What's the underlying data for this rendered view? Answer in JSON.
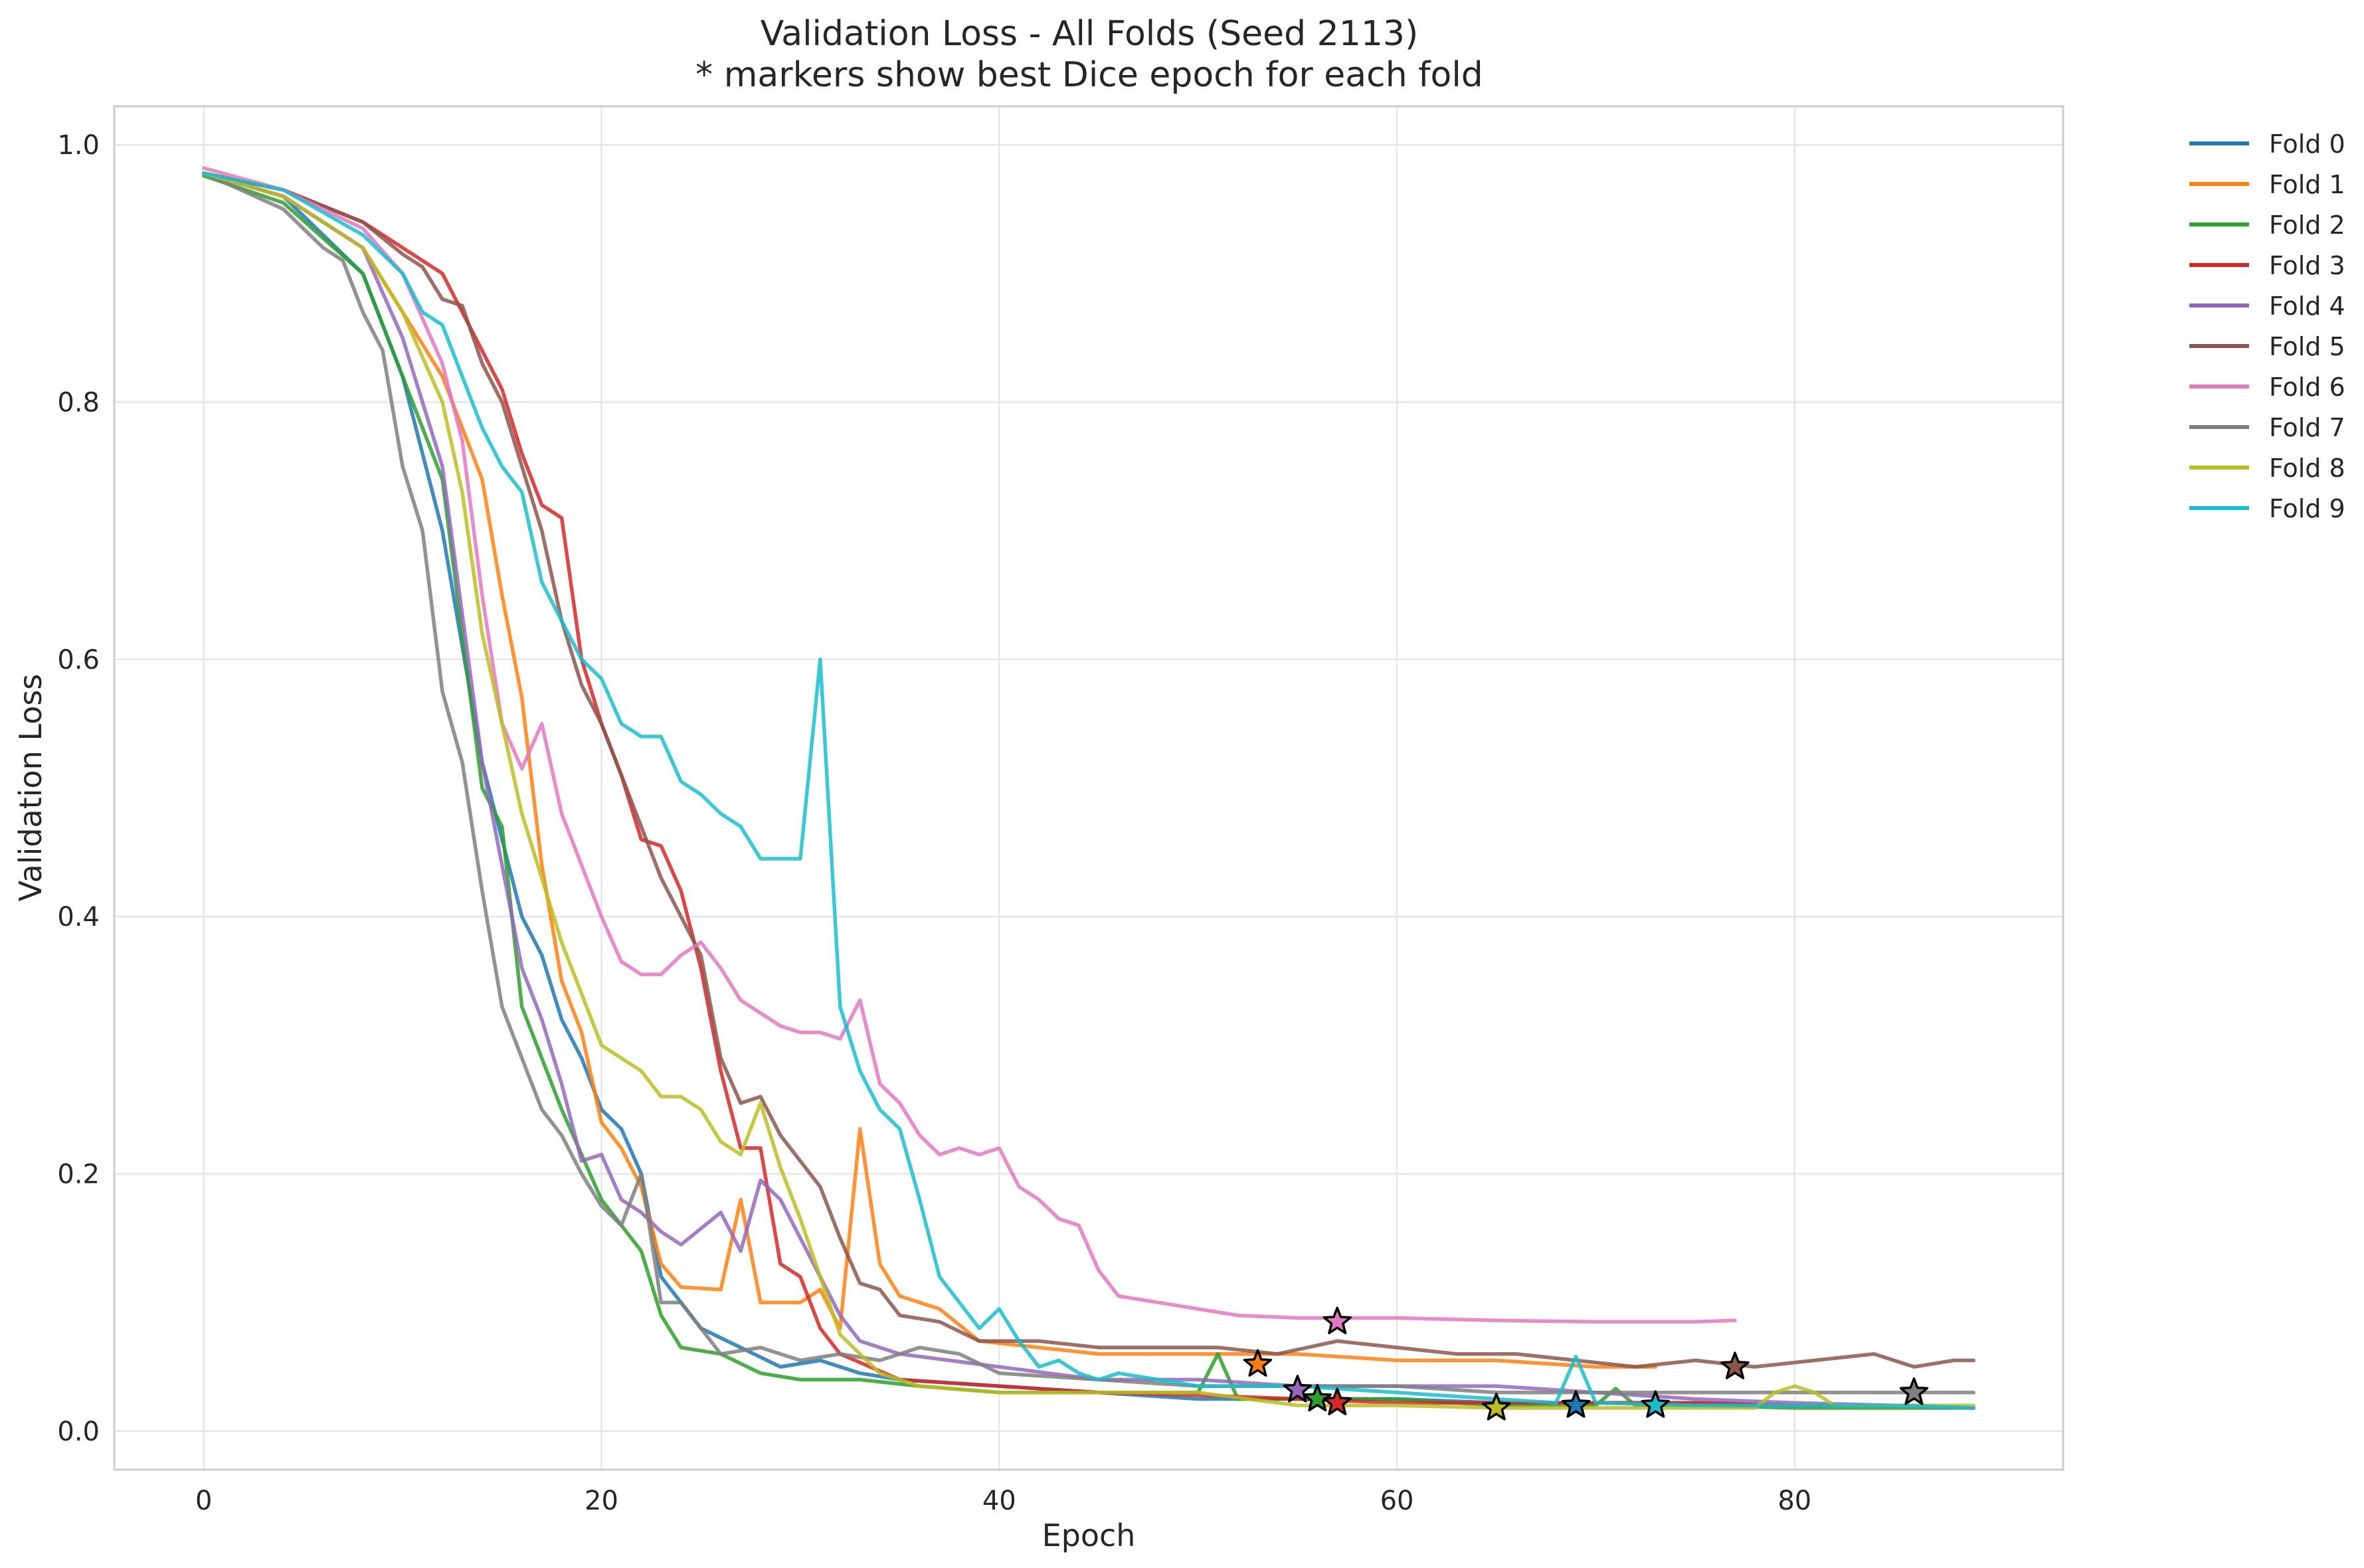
{
  "chart_data": {
    "type": "line",
    "title": "Validation Loss - All Folds (Seed 2113)",
    "subtitle": "* markers show best Dice epoch for each fold",
    "xlabel": "Epoch",
    "ylabel": "Validation Loss",
    "xlim": [
      -4.5,
      93.5
    ],
    "ylim": [
      -0.03,
      1.03
    ],
    "xticks": [
      0,
      20,
      40,
      60,
      80
    ],
    "yticks": [
      0.0,
      0.2,
      0.4,
      0.6,
      0.8,
      1.0
    ],
    "xtick_labels": [
      "0",
      "20",
      "40",
      "60",
      "80"
    ],
    "ytick_labels": [
      "0.0",
      "0.2",
      "0.4",
      "0.6",
      "0.8",
      "1.0"
    ],
    "grid": true,
    "legend_placement": "outside-top-right",
    "series": [
      {
        "name": "Fold 0",
        "color": "#1f77b4",
        "x": [
          0,
          4,
          8,
          10,
          12,
          14,
          16,
          17,
          18,
          19,
          20,
          21,
          22,
          23,
          25,
          27,
          29,
          31,
          33,
          35,
          40,
          45,
          50,
          55,
          60,
          65,
          70,
          75,
          80,
          85,
          89
        ],
        "y": [
          0.978,
          0.96,
          0.9,
          0.82,
          0.7,
          0.52,
          0.4,
          0.37,
          0.32,
          0.29,
          0.25,
          0.235,
          0.2,
          0.12,
          0.08,
          0.065,
          0.05,
          0.055,
          0.045,
          0.04,
          0.035,
          0.03,
          0.025,
          0.025,
          0.025,
          0.022,
          0.022,
          0.022,
          0.02,
          0.02,
          0.018
        ],
        "best": {
          "epoch": 69,
          "loss": 0.02
        }
      },
      {
        "name": "Fold 1",
        "color": "#ff7f0e",
        "x": [
          0,
          4,
          8,
          10,
          12,
          14,
          15,
          16,
          17,
          18,
          19,
          20,
          21,
          22,
          23,
          24,
          26,
          27,
          28,
          29,
          30,
          31,
          32,
          33,
          34,
          35,
          37,
          39,
          42,
          45,
          50,
          55,
          60,
          65,
          70,
          73
        ],
        "y": [
          0.978,
          0.96,
          0.92,
          0.87,
          0.82,
          0.74,
          0.65,
          0.57,
          0.44,
          0.35,
          0.31,
          0.24,
          0.22,
          0.19,
          0.13,
          0.112,
          0.11,
          0.18,
          0.1,
          0.1,
          0.1,
          0.11,
          0.08,
          0.235,
          0.13,
          0.105,
          0.095,
          0.07,
          0.065,
          0.06,
          0.06,
          0.06,
          0.055,
          0.055,
          0.05,
          0.05
        ],
        "best": {
          "epoch": 53,
          "loss": 0.052
        }
      },
      {
        "name": "Fold 2",
        "color": "#2ca02c",
        "x": [
          0,
          4,
          8,
          10,
          12,
          13,
          14,
          15,
          16,
          18,
          20,
          21,
          22,
          23,
          24,
          26,
          28,
          30,
          33,
          36,
          40,
          45,
          50,
          51,
          52,
          55,
          60,
          65,
          70,
          71,
          72,
          75,
          80,
          85,
          89
        ],
        "y": [
          0.976,
          0.955,
          0.9,
          0.82,
          0.74,
          0.62,
          0.5,
          0.47,
          0.33,
          0.25,
          0.18,
          0.16,
          0.14,
          0.09,
          0.065,
          0.06,
          0.045,
          0.04,
          0.04,
          0.035,
          0.03,
          0.03,
          0.03,
          0.06,
          0.025,
          0.025,
          0.025,
          0.02,
          0.02,
          0.033,
          0.02,
          0.02,
          0.018,
          0.018,
          0.018
        ],
        "best": {
          "epoch": 56,
          "loss": 0.025
        }
      },
      {
        "name": "Fold 3",
        "color": "#d62728",
        "x": [
          0,
          4,
          8,
          10,
          12,
          13,
          14,
          15,
          16,
          17,
          18,
          19,
          20,
          21,
          22,
          23,
          24,
          25,
          26,
          27,
          28,
          29,
          30,
          31,
          32,
          35,
          40,
          45,
          50,
          55,
          60,
          65,
          70,
          75,
          80,
          85,
          89
        ],
        "y": [
          0.978,
          0.965,
          0.94,
          0.92,
          0.9,
          0.87,
          0.84,
          0.81,
          0.76,
          0.72,
          0.71,
          0.6,
          0.55,
          0.51,
          0.46,
          0.455,
          0.42,
          0.36,
          0.28,
          0.22,
          0.22,
          0.13,
          0.12,
          0.08,
          0.06,
          0.04,
          0.035,
          0.03,
          0.028,
          0.025,
          0.022,
          0.022,
          0.022,
          0.022,
          0.02,
          0.02,
          0.018
        ],
        "best": {
          "epoch": 57,
          "loss": 0.022
        }
      },
      {
        "name": "Fold 4",
        "color": "#9467bd",
        "x": [
          0,
          4,
          8,
          10,
          12,
          14,
          16,
          17,
          18,
          19,
          20,
          21,
          22,
          23,
          24,
          26,
          27,
          28,
          29,
          30,
          31,
          32,
          33,
          35,
          40,
          45,
          50,
          55,
          60,
          65,
          70,
          75,
          80,
          85,
          89
        ],
        "y": [
          0.978,
          0.96,
          0.92,
          0.85,
          0.75,
          0.52,
          0.36,
          0.32,
          0.27,
          0.21,
          0.215,
          0.18,
          0.17,
          0.155,
          0.145,
          0.17,
          0.14,
          0.195,
          0.18,
          0.15,
          0.12,
          0.09,
          0.07,
          0.06,
          0.05,
          0.04,
          0.04,
          0.035,
          0.035,
          0.035,
          0.03,
          0.025,
          0.022,
          0.02,
          0.018
        ],
        "best": {
          "epoch": 55,
          "loss": 0.032
        }
      },
      {
        "name": "Fold 5",
        "color": "#8c564b",
        "x": [
          0,
          4,
          8,
          10,
          11,
          12,
          13,
          14,
          15,
          16,
          17,
          18,
          19,
          20,
          21,
          22,
          23,
          24,
          25,
          26,
          27,
          28,
          29,
          30,
          31,
          32,
          33,
          34,
          35,
          37,
          39,
          42,
          45,
          48,
          51,
          54,
          57,
          60,
          63,
          66,
          69,
          72,
          75,
          78,
          81,
          84,
          86,
          88,
          89
        ],
        "y": [
          0.978,
          0.965,
          0.94,
          0.915,
          0.905,
          0.88,
          0.875,
          0.83,
          0.8,
          0.75,
          0.7,
          0.63,
          0.58,
          0.55,
          0.51,
          0.47,
          0.43,
          0.4,
          0.37,
          0.29,
          0.255,
          0.26,
          0.23,
          0.21,
          0.19,
          0.15,
          0.115,
          0.11,
          0.09,
          0.085,
          0.07,
          0.07,
          0.065,
          0.065,
          0.065,
          0.06,
          0.07,
          0.065,
          0.06,
          0.06,
          0.055,
          0.05,
          0.055,
          0.05,
          0.055,
          0.06,
          0.05,
          0.055,
          0.055
        ],
        "best": {
          "epoch": 77,
          "loss": 0.05
        }
      },
      {
        "name": "Fold 6",
        "color": "#e377c2",
        "x": [
          0,
          4,
          8,
          10,
          12,
          13,
          14,
          15,
          16,
          17,
          18,
          19,
          20,
          21,
          22,
          23,
          24,
          25,
          26,
          27,
          28,
          29,
          30,
          31,
          32,
          33,
          34,
          35,
          36,
          37,
          38,
          39,
          40,
          41,
          42,
          43,
          44,
          45,
          46,
          48,
          50,
          52,
          55,
          60,
          65,
          70,
          75,
          77
        ],
        "y": [
          0.982,
          0.965,
          0.935,
          0.9,
          0.83,
          0.77,
          0.65,
          0.55,
          0.515,
          0.55,
          0.48,
          0.44,
          0.4,
          0.365,
          0.355,
          0.355,
          0.37,
          0.38,
          0.36,
          0.335,
          0.325,
          0.315,
          0.31,
          0.31,
          0.305,
          0.335,
          0.27,
          0.255,
          0.23,
          0.215,
          0.22,
          0.215,
          0.22,
          0.19,
          0.18,
          0.165,
          0.16,
          0.125,
          0.105,
          0.1,
          0.095,
          0.09,
          0.088,
          0.088,
          0.086,
          0.085,
          0.085,
          0.086
        ],
        "best": {
          "epoch": 57,
          "loss": 0.085
        }
      },
      {
        "name": "Fold 7",
        "color": "#7f7f7f",
        "x": [
          0,
          4,
          6,
          7,
          8,
          9,
          10,
          11,
          12,
          13,
          14,
          15,
          16,
          17,
          18,
          19,
          20,
          21,
          22,
          23,
          24,
          26,
          28,
          30,
          32,
          34,
          36,
          38,
          40,
          45,
          50,
          55,
          60,
          65,
          70,
          75,
          80,
          85,
          89
        ],
        "y": [
          0.978,
          0.95,
          0.92,
          0.91,
          0.87,
          0.84,
          0.75,
          0.7,
          0.575,
          0.52,
          0.42,
          0.33,
          0.29,
          0.25,
          0.23,
          0.2,
          0.175,
          0.16,
          0.2,
          0.1,
          0.1,
          0.06,
          0.065,
          0.055,
          0.06,
          0.055,
          0.065,
          0.06,
          0.045,
          0.04,
          0.035,
          0.035,
          0.035,
          0.03,
          0.03,
          0.03,
          0.03,
          0.03,
          0.03
        ],
        "best": {
          "epoch": 86,
          "loss": 0.03
        }
      },
      {
        "name": "Fold 8",
        "color": "#bcbd22",
        "x": [
          0,
          4,
          8,
          10,
          12,
          13,
          14,
          15,
          16,
          17,
          18,
          19,
          20,
          21,
          22,
          23,
          24,
          25,
          26,
          27,
          28,
          29,
          30,
          31,
          32,
          34,
          36,
          40,
          45,
          50,
          55,
          60,
          65,
          70,
          75,
          78,
          79,
          80,
          81,
          82,
          85,
          89
        ],
        "y": [
          0.978,
          0.96,
          0.92,
          0.87,
          0.8,
          0.73,
          0.62,
          0.55,
          0.48,
          0.43,
          0.38,
          0.34,
          0.3,
          0.29,
          0.28,
          0.26,
          0.26,
          0.25,
          0.225,
          0.215,
          0.255,
          0.205,
          0.165,
          0.12,
          0.075,
          0.045,
          0.035,
          0.03,
          0.03,
          0.03,
          0.02,
          0.02,
          0.018,
          0.018,
          0.018,
          0.018,
          0.03,
          0.035,
          0.03,
          0.02,
          0.02,
          0.02
        ],
        "best": {
          "epoch": 65,
          "loss": 0.018
        }
      },
      {
        "name": "Fold 9",
        "color": "#17becf",
        "x": [
          0,
          4,
          8,
          10,
          11,
          12,
          13,
          14,
          15,
          16,
          17,
          18,
          19,
          20,
          21,
          22,
          23,
          24,
          25,
          26,
          27,
          28,
          29,
          30,
          31,
          32,
          33,
          34,
          35,
          36,
          37,
          38,
          39,
          40,
          41,
          42,
          43,
          44,
          45,
          46,
          48,
          50,
          55,
          60,
          65,
          68,
          69,
          70,
          75,
          80,
          85,
          89
        ],
        "y": [
          0.978,
          0.965,
          0.93,
          0.9,
          0.87,
          0.86,
          0.82,
          0.78,
          0.75,
          0.73,
          0.66,
          0.63,
          0.6,
          0.585,
          0.55,
          0.54,
          0.54,
          0.505,
          0.495,
          0.48,
          0.47,
          0.445,
          0.445,
          0.445,
          0.6,
          0.33,
          0.28,
          0.25,
          0.235,
          0.18,
          0.12,
          0.1,
          0.08,
          0.095,
          0.07,
          0.05,
          0.055,
          0.045,
          0.04,
          0.045,
          0.04,
          0.035,
          0.035,
          0.03,
          0.025,
          0.022,
          0.058,
          0.022,
          0.02,
          0.02,
          0.02,
          0.018
        ],
        "best": {
          "epoch": 73,
          "loss": 0.02
        }
      }
    ]
  }
}
